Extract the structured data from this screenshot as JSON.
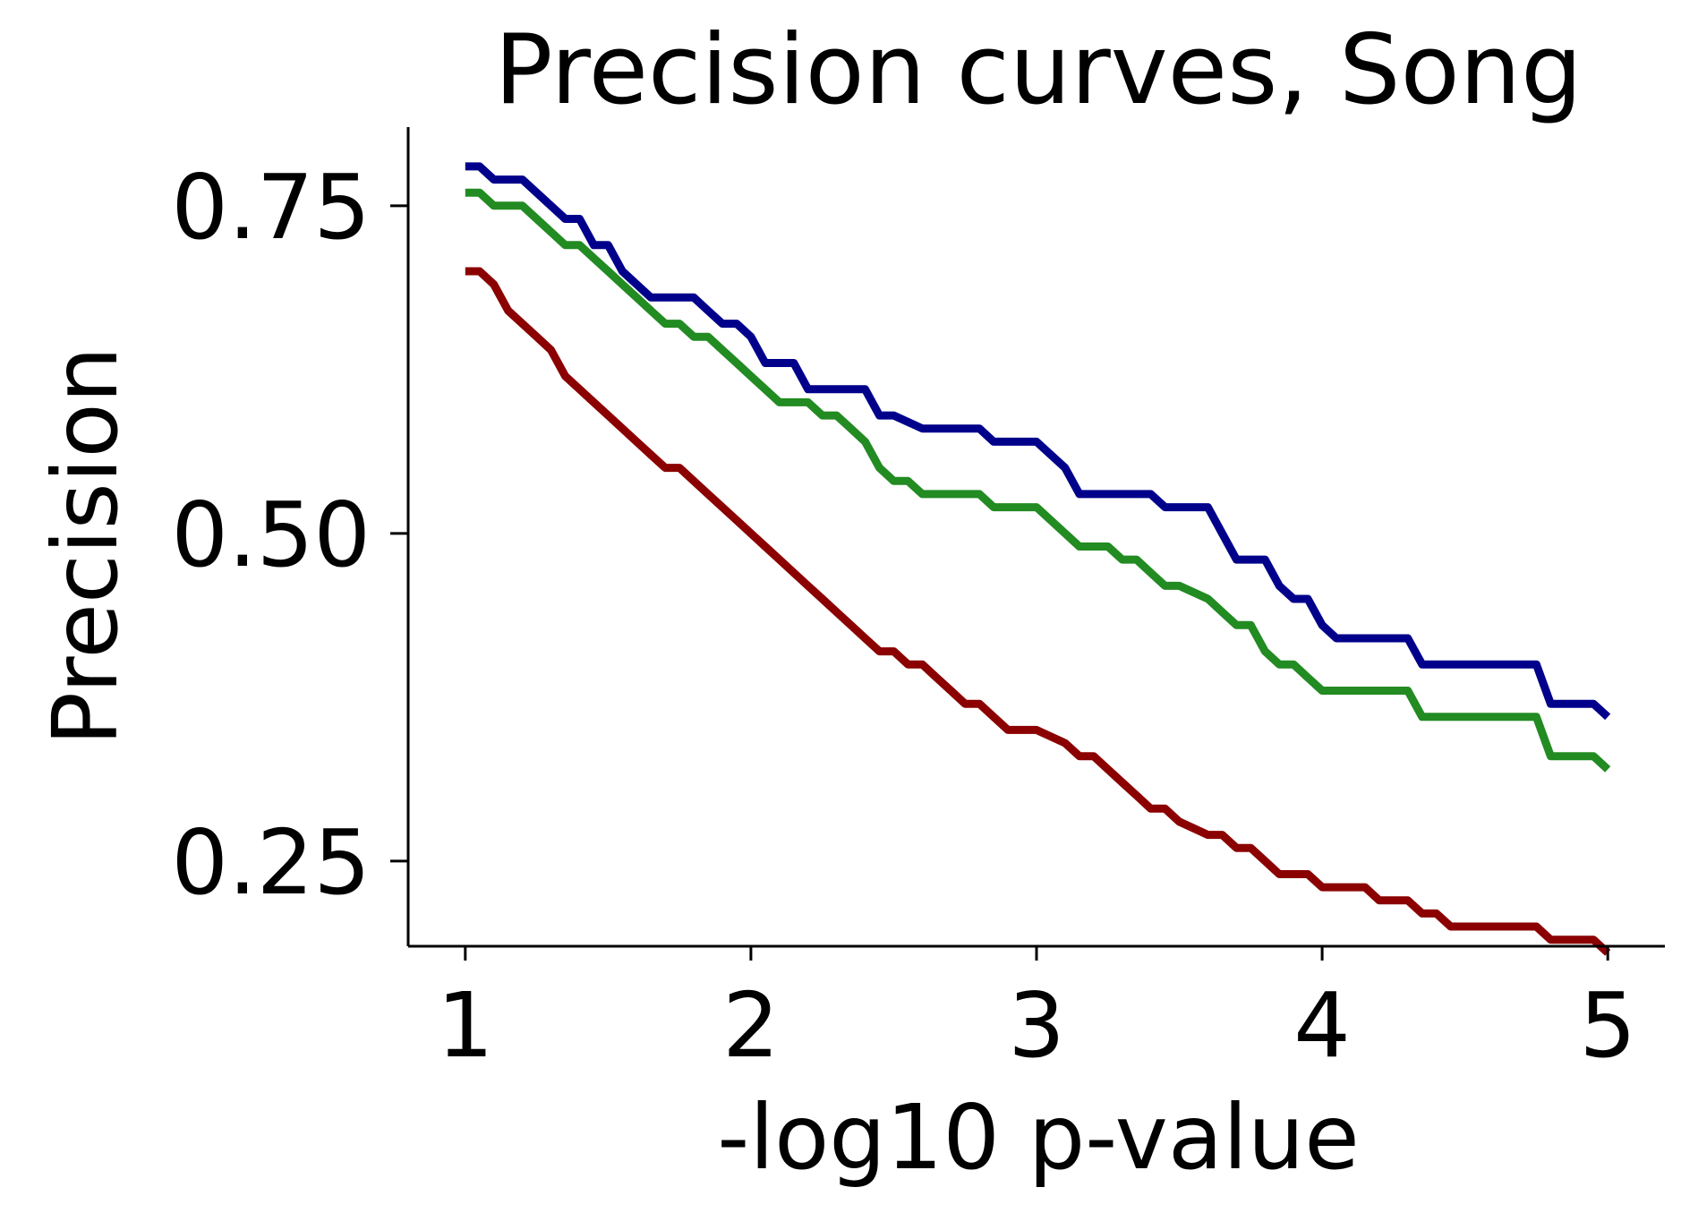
{
  "chart_data": {
    "type": "line",
    "title": "Precision curves, Song",
    "xlabel": "-log10 p-value",
    "ylabel": "Precision",
    "xlim": [
      0.8,
      5.2
    ],
    "ylim": [
      0.185,
      0.81
    ],
    "xticks": [
      1,
      2,
      3,
      4,
      5
    ],
    "xtick_labels": [
      "1",
      "2",
      "3",
      "4",
      "5"
    ],
    "yticks": [
      0.25,
      0.5,
      0.75
    ],
    "ytick_labels": [
      "0.25",
      "0.50",
      "0.75"
    ],
    "grid": false,
    "legend": "none",
    "series": [
      {
        "color": "#00008b",
        "x": [
          1.0,
          1.05,
          1.1,
          1.2,
          1.35,
          1.4,
          1.45,
          1.5,
          1.55,
          1.6,
          1.65,
          1.7,
          1.8,
          1.85,
          1.9,
          1.95,
          2.0,
          2.05,
          2.1,
          2.15,
          2.2,
          2.25,
          2.3,
          2.4,
          2.45,
          2.5,
          2.6,
          2.65,
          2.7,
          2.8,
          2.85,
          2.9,
          3.0,
          3.1,
          3.15,
          3.2,
          3.3,
          3.4,
          3.45,
          3.5,
          3.6,
          3.65,
          3.7,
          3.75,
          3.8,
          3.85,
          3.9,
          3.95,
          4.0,
          4.05,
          4.1,
          4.3,
          4.35,
          4.4,
          4.75,
          4.8,
          4.85,
          4.95,
          5.0
        ],
        "y": [
          0.78,
          0.78,
          0.77,
          0.77,
          0.74,
          0.74,
          0.72,
          0.72,
          0.7,
          0.69,
          0.68,
          0.68,
          0.68,
          0.67,
          0.66,
          0.66,
          0.65,
          0.63,
          0.63,
          0.63,
          0.61,
          0.61,
          0.61,
          0.61,
          0.59,
          0.59,
          0.58,
          0.58,
          0.58,
          0.58,
          0.57,
          0.57,
          0.57,
          0.55,
          0.53,
          0.53,
          0.53,
          0.53,
          0.52,
          0.52,
          0.52,
          0.5,
          0.48,
          0.48,
          0.48,
          0.46,
          0.45,
          0.45,
          0.43,
          0.42,
          0.42,
          0.42,
          0.4,
          0.4,
          0.4,
          0.37,
          0.37,
          0.37,
          0.36
        ]
      },
      {
        "color": "#228b22",
        "x": [
          1.0,
          1.05,
          1.1,
          1.2,
          1.25,
          1.3,
          1.35,
          1.4,
          1.45,
          1.5,
          1.55,
          1.6,
          1.65,
          1.7,
          1.75,
          1.8,
          1.85,
          1.9,
          1.95,
          2.0,
          2.05,
          2.1,
          2.15,
          2.2,
          2.25,
          2.3,
          2.35,
          2.4,
          2.45,
          2.5,
          2.55,
          2.6,
          2.65,
          2.7,
          2.8,
          2.85,
          2.9,
          3.0,
          3.1,
          3.15,
          3.2,
          3.25,
          3.3,
          3.35,
          3.4,
          3.45,
          3.5,
          3.6,
          3.65,
          3.7,
          3.75,
          3.8,
          3.85,
          3.9,
          3.95,
          4.0,
          4.05,
          4.1,
          4.3,
          4.35,
          4.4,
          4.75,
          4.8,
          4.85,
          4.95,
          5.0
        ],
        "y": [
          0.76,
          0.76,
          0.75,
          0.75,
          0.74,
          0.73,
          0.72,
          0.72,
          0.71,
          0.7,
          0.69,
          0.68,
          0.67,
          0.66,
          0.66,
          0.65,
          0.65,
          0.64,
          0.63,
          0.62,
          0.61,
          0.6,
          0.6,
          0.6,
          0.59,
          0.59,
          0.58,
          0.57,
          0.55,
          0.54,
          0.54,
          0.53,
          0.53,
          0.53,
          0.53,
          0.52,
          0.52,
          0.52,
          0.5,
          0.49,
          0.49,
          0.49,
          0.48,
          0.48,
          0.47,
          0.46,
          0.46,
          0.45,
          0.44,
          0.43,
          0.43,
          0.41,
          0.4,
          0.4,
          0.39,
          0.38,
          0.38,
          0.38,
          0.38,
          0.36,
          0.36,
          0.36,
          0.33,
          0.33,
          0.33,
          0.32
        ]
      },
      {
        "color": "#8b0000",
        "x": [
          1.0,
          1.05,
          1.1,
          1.15,
          1.2,
          1.25,
          1.3,
          1.35,
          1.4,
          1.45,
          1.5,
          1.55,
          1.6,
          1.65,
          1.7,
          1.75,
          1.8,
          1.85,
          1.9,
          1.95,
          2.0,
          2.05,
          2.1,
          2.15,
          2.2,
          2.25,
          2.3,
          2.35,
          2.4,
          2.45,
          2.5,
          2.55,
          2.6,
          2.65,
          2.7,
          2.75,
          2.8,
          2.85,
          2.9,
          3.0,
          3.1,
          3.15,
          3.2,
          3.25,
          3.3,
          3.35,
          3.4,
          3.45,
          3.5,
          3.6,
          3.65,
          3.7,
          3.75,
          3.8,
          3.85,
          3.9,
          3.95,
          4.0,
          4.05,
          4.1,
          4.15,
          4.2,
          4.25,
          4.3,
          4.35,
          4.4,
          4.45,
          4.5,
          4.55,
          4.6,
          4.65,
          4.7,
          4.75,
          4.8,
          4.85,
          4.9,
          4.95,
          5.0
        ],
        "y": [
          0.7,
          0.7,
          0.69,
          0.67,
          0.66,
          0.65,
          0.64,
          0.62,
          0.61,
          0.6,
          0.59,
          0.58,
          0.57,
          0.56,
          0.55,
          0.55,
          0.54,
          0.53,
          0.52,
          0.51,
          0.5,
          0.49,
          0.48,
          0.47,
          0.46,
          0.45,
          0.44,
          0.43,
          0.42,
          0.41,
          0.41,
          0.4,
          0.4,
          0.39,
          0.38,
          0.37,
          0.37,
          0.36,
          0.35,
          0.35,
          0.34,
          0.33,
          0.33,
          0.32,
          0.31,
          0.3,
          0.29,
          0.29,
          0.28,
          0.27,
          0.27,
          0.26,
          0.26,
          0.25,
          0.24,
          0.24,
          0.24,
          0.23,
          0.23,
          0.23,
          0.23,
          0.22,
          0.22,
          0.22,
          0.21,
          0.21,
          0.2,
          0.2,
          0.2,
          0.2,
          0.2,
          0.2,
          0.2,
          0.19,
          0.19,
          0.19,
          0.19,
          0.18
        ]
      }
    ]
  }
}
